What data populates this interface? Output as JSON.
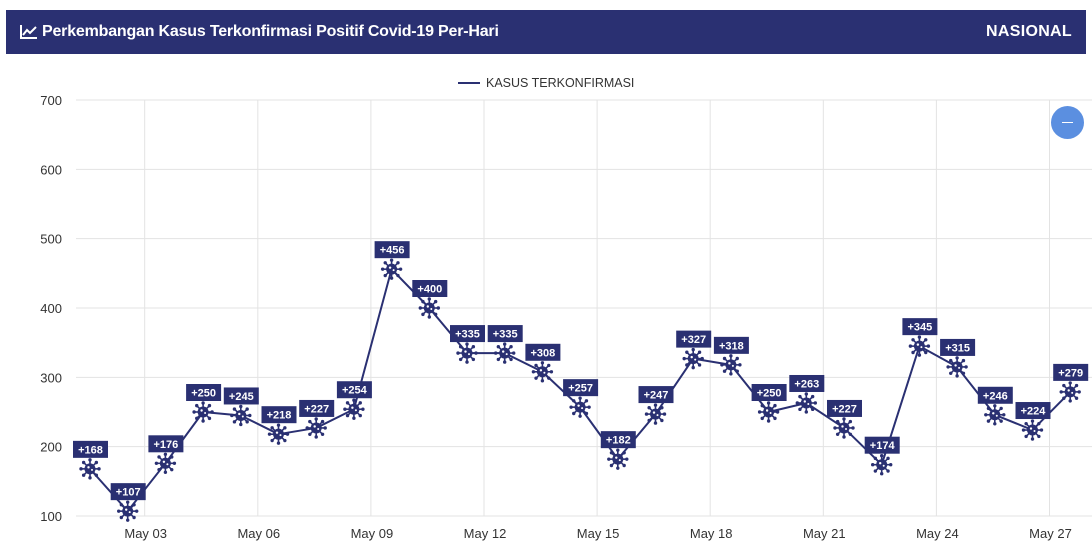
{
  "header": {
    "title": "Perkembangan Kasus Terkonfirmasi Positif Covid-19 Per-Hari",
    "region": "NASIONAL",
    "icon": "line-chart-icon"
  },
  "collapse_button": {
    "icon": "minus-icon"
  },
  "colors": {
    "header_bg": "#2a3072",
    "series": "#2a3072",
    "label_bg": "#2a3072",
    "button": "#5b8fe0"
  },
  "chart_data": {
    "type": "line",
    "legend": [
      "KASUS TERKONFIRMASI"
    ],
    "legend_position": "top-center",
    "grid": true,
    "ylim": [
      100,
      700
    ],
    "yticks": [
      100,
      200,
      300,
      400,
      500,
      600,
      700
    ],
    "xtick_labels": [
      "May 03",
      "May 06",
      "May 09",
      "May 12",
      "May 15",
      "May 18",
      "May 21",
      "May 24",
      "May 27"
    ],
    "series": [
      {
        "name": "KASUS TERKONFIRMASI",
        "x": [
          "May 02",
          "May 03",
          "May 04",
          "May 05",
          "May 06",
          "May 07",
          "May 08",
          "May 09",
          "May 10",
          "May 11",
          "May 12",
          "May 13",
          "May 14",
          "May 15",
          "May 16",
          "May 17",
          "May 18",
          "May 19",
          "May 20",
          "May 21",
          "May 22",
          "May 23",
          "May 24",
          "May 25",
          "May 26",
          "May 27",
          "May 28"
        ],
        "values": [
          168,
          107,
          176,
          250,
          245,
          218,
          227,
          254,
          456,
          400,
          335,
          335,
          308,
          257,
          182,
          247,
          327,
          318,
          250,
          263,
          227,
          174,
          345,
          315,
          246,
          224,
          279
        ],
        "labels": [
          "+168",
          "+107",
          "+176",
          "+250",
          "+245",
          "+218",
          "+227",
          "+254",
          "+456",
          "+400",
          "+335",
          "+335",
          "+308",
          "+257",
          "+182",
          "+247",
          "+327",
          "+318",
          "+250",
          "+263",
          "+227",
          "+174",
          "+345",
          "+315",
          "+246",
          "+224",
          "+279"
        ]
      }
    ]
  }
}
